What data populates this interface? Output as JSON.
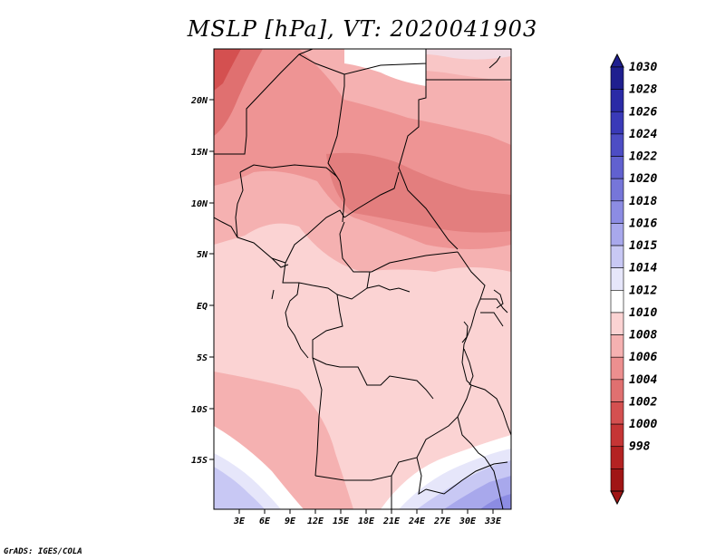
{
  "title": "MSLP [hPa], VT: 2020041903",
  "credit": "GrADS: IGES/COLA",
  "map": {
    "lat_labels": [
      "20N",
      "15N",
      "10N",
      "5N",
      "EQ",
      "5S",
      "10S",
      "15S"
    ],
    "lon_labels": [
      "3E",
      "6E",
      "9E",
      "12E",
      "15E",
      "18E",
      "21E",
      "24E",
      "27E",
      "30E",
      "33E"
    ]
  },
  "colorbar": {
    "levels": [
      "1030",
      "1028",
      "1026",
      "1024",
      "1022",
      "1020",
      "1018",
      "1016",
      "1015",
      "1014",
      "1012",
      "1010",
      "1008",
      "1006",
      "1004",
      "1002",
      "1000",
      "998"
    ],
    "colors": [
      "#1f1f8f",
      "#2a2aa6",
      "#3a3ab8",
      "#4d4dc4",
      "#6161cf",
      "#7676d9",
      "#8c8ce3",
      "#a8a8ec",
      "#c8c8f4",
      "#e6e6fa",
      "#ffffff",
      "#fbd3d3",
      "#f5b1b1",
      "#ec8f8f",
      "#e07070",
      "#d45050",
      "#c53535",
      "#b42222",
      "#a01515"
    ],
    "top_arrow_color": "#1f1f8f",
    "bottom_arrow_color": "#a01515"
  }
}
